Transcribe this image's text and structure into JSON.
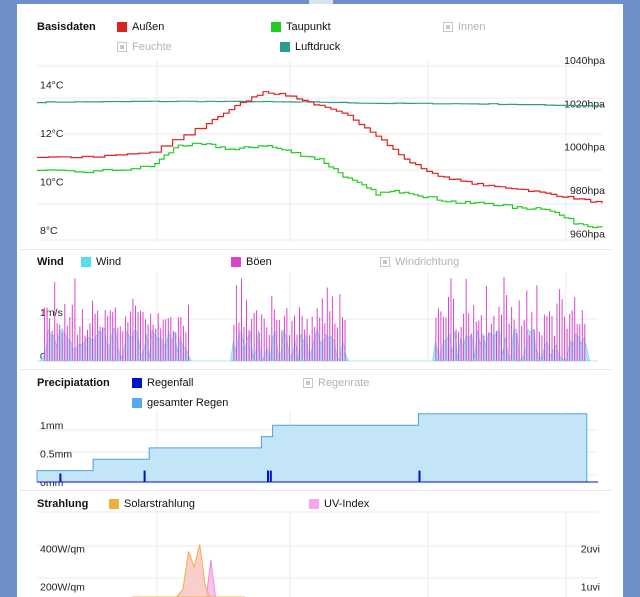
{
  "colors": {
    "aussen": "#dd2222",
    "taupunkt": "#22cc22",
    "luftdruck": "#2a9d8f",
    "wind": "#55ddee",
    "boeen": "#dd44cc",
    "regenfall": "#0011cc",
    "gesamter_regen": "#55aaee",
    "solar": "#f0b040",
    "uv": "#f7a7ea"
  },
  "chart_data": [
    {
      "type": "line",
      "title": "Basisdaten",
      "series": [
        {
          "name": "Außen",
          "color": "#dd2222"
        },
        {
          "name": "Taupunkt",
          "color": "#22cc22"
        },
        {
          "name": "Innen",
          "hidden": true
        },
        {
          "name": "Feuchte",
          "hidden": true
        },
        {
          "name": "Luftdruck",
          "color": "#2a9d8f"
        }
      ],
      "y_left_ticks": [
        "14°C",
        "12°C",
        "10°C",
        "8°C"
      ],
      "y_left_range": [
        7.8,
        15.3
      ],
      "y_right_ticks": [
        "1040hpa",
        "1020hpa",
        "1000hpa",
        "980hpa",
        "960hpa"
      ],
      "y_right_range": [
        956,
        1040
      ],
      "x_range": [
        0,
        100
      ],
      "aussen": [
        [
          0,
          11.3
        ],
        [
          10,
          11.3
        ],
        [
          20,
          11.5
        ],
        [
          30,
          12.7
        ],
        [
          35,
          13.4
        ],
        [
          40,
          14.0
        ],
        [
          45,
          13.8
        ],
        [
          50,
          13.4
        ],
        [
          55,
          13.0
        ],
        [
          60,
          12.2
        ],
        [
          65,
          11.2
        ],
        [
          70,
          10.6
        ],
        [
          75,
          10.3
        ],
        [
          80,
          10.1
        ],
        [
          85,
          10.0
        ],
        [
          90,
          9.8
        ],
        [
          95,
          9.6
        ],
        [
          100,
          9.4
        ]
      ],
      "taupunkt": [
        [
          0,
          10.7
        ],
        [
          10,
          10.7
        ],
        [
          20,
          10.9
        ],
        [
          25,
          11.8
        ],
        [
          30,
          11.8
        ],
        [
          35,
          11.6
        ],
        [
          40,
          11.8
        ],
        [
          45,
          11.5
        ],
        [
          50,
          11.2
        ],
        [
          55,
          10.4
        ],
        [
          60,
          9.8
        ],
        [
          65,
          9.9
        ],
        [
          70,
          9.6
        ],
        [
          75,
          9.4
        ],
        [
          80,
          9.4
        ],
        [
          85,
          9.2
        ],
        [
          90,
          9.2
        ],
        [
          95,
          8.6
        ],
        [
          100,
          8.4
        ]
      ],
      "luftdruck": [
        [
          0,
          1020.5
        ],
        [
          10,
          1020.7
        ],
        [
          20,
          1020.9
        ],
        [
          30,
          1020.9
        ],
        [
          40,
          1020.7
        ],
        [
          50,
          1020.5
        ],
        [
          60,
          1020.0
        ],
        [
          70,
          1019.9
        ],
        [
          80,
          1019.7
        ],
        [
          90,
          1019.2
        ],
        [
          100,
          1018.8
        ]
      ]
    },
    {
      "type": "bar",
      "title": "Wind",
      "series": [
        {
          "name": "Wind",
          "color": "#55ddee"
        },
        {
          "name": "Böen",
          "color": "#dd44cc"
        },
        {
          "name": "Windrichtung",
          "hidden": true
        }
      ],
      "y_ticks": [
        "1m/s",
        "0m/s"
      ],
      "y_range": [
        0,
        2.1
      ],
      "x_range": [
        0,
        100
      ]
    },
    {
      "type": "area",
      "title": "Precipiatation",
      "series": [
        {
          "name": "Regenfall",
          "color": "#0011cc"
        },
        {
          "name": "gesamter Regen",
          "color": "#55aaee"
        },
        {
          "name": "Regenrate",
          "hidden": true
        }
      ],
      "y_ticks": [
        "1mm",
        "0.5mm",
        "0mm"
      ],
      "y_range": [
        0,
        1.25
      ],
      "x_range": [
        0,
        100
      ],
      "gesamter_regen": [
        [
          0,
          0.2
        ],
        [
          10,
          0.2
        ],
        [
          10,
          0.4
        ],
        [
          20,
          0.4
        ],
        [
          20,
          0.6
        ],
        [
          40,
          0.6
        ],
        [
          40,
          0.8
        ],
        [
          42,
          0.8
        ],
        [
          42,
          1.0
        ],
        [
          68,
          1.0
        ],
        [
          68,
          1.2
        ],
        [
          98,
          1.2
        ]
      ],
      "regenfall": [
        [
          4,
          0.15
        ],
        [
          19,
          0.2
        ],
        [
          41,
          0.2
        ],
        [
          41.5,
          0.2
        ],
        [
          68,
          0.2
        ]
      ]
    },
    {
      "type": "area",
      "title": "Strahlung",
      "series": [
        {
          "name": "Solarstrahlung",
          "color": "#f0b040"
        },
        {
          "name": "UV-Index",
          "color": "#f7a7ea"
        }
      ],
      "y_left_ticks": [
        "400W/qm",
        "200W/qm"
      ],
      "y_left_range": [
        0,
        590
      ],
      "y_right_ticks": [
        "2uvi",
        "1uvi"
      ],
      "y_right_range": [
        0,
        2.95
      ],
      "x_range": [
        0,
        100
      ],
      "solar": [
        [
          17,
          0
        ],
        [
          18,
          80
        ],
        [
          20,
          90
        ],
        [
          22,
          100
        ],
        [
          24,
          120
        ],
        [
          26,
          180
        ],
        [
          27,
          380
        ],
        [
          28,
          300
        ],
        [
          29,
          420
        ],
        [
          30,
          200
        ],
        [
          31,
          130
        ],
        [
          32,
          60
        ],
        [
          33,
          90
        ],
        [
          34,
          80
        ],
        [
          35,
          60
        ],
        [
          36,
          40
        ],
        [
          37,
          0
        ]
      ],
      "uv": [
        [
          17,
          0
        ],
        [
          17.2,
          0.5
        ],
        [
          30,
          0.5
        ],
        [
          31,
          1.7
        ],
        [
          32,
          0.5
        ],
        [
          36,
          0.5
        ],
        [
          36.2,
          0
        ]
      ]
    }
  ]
}
